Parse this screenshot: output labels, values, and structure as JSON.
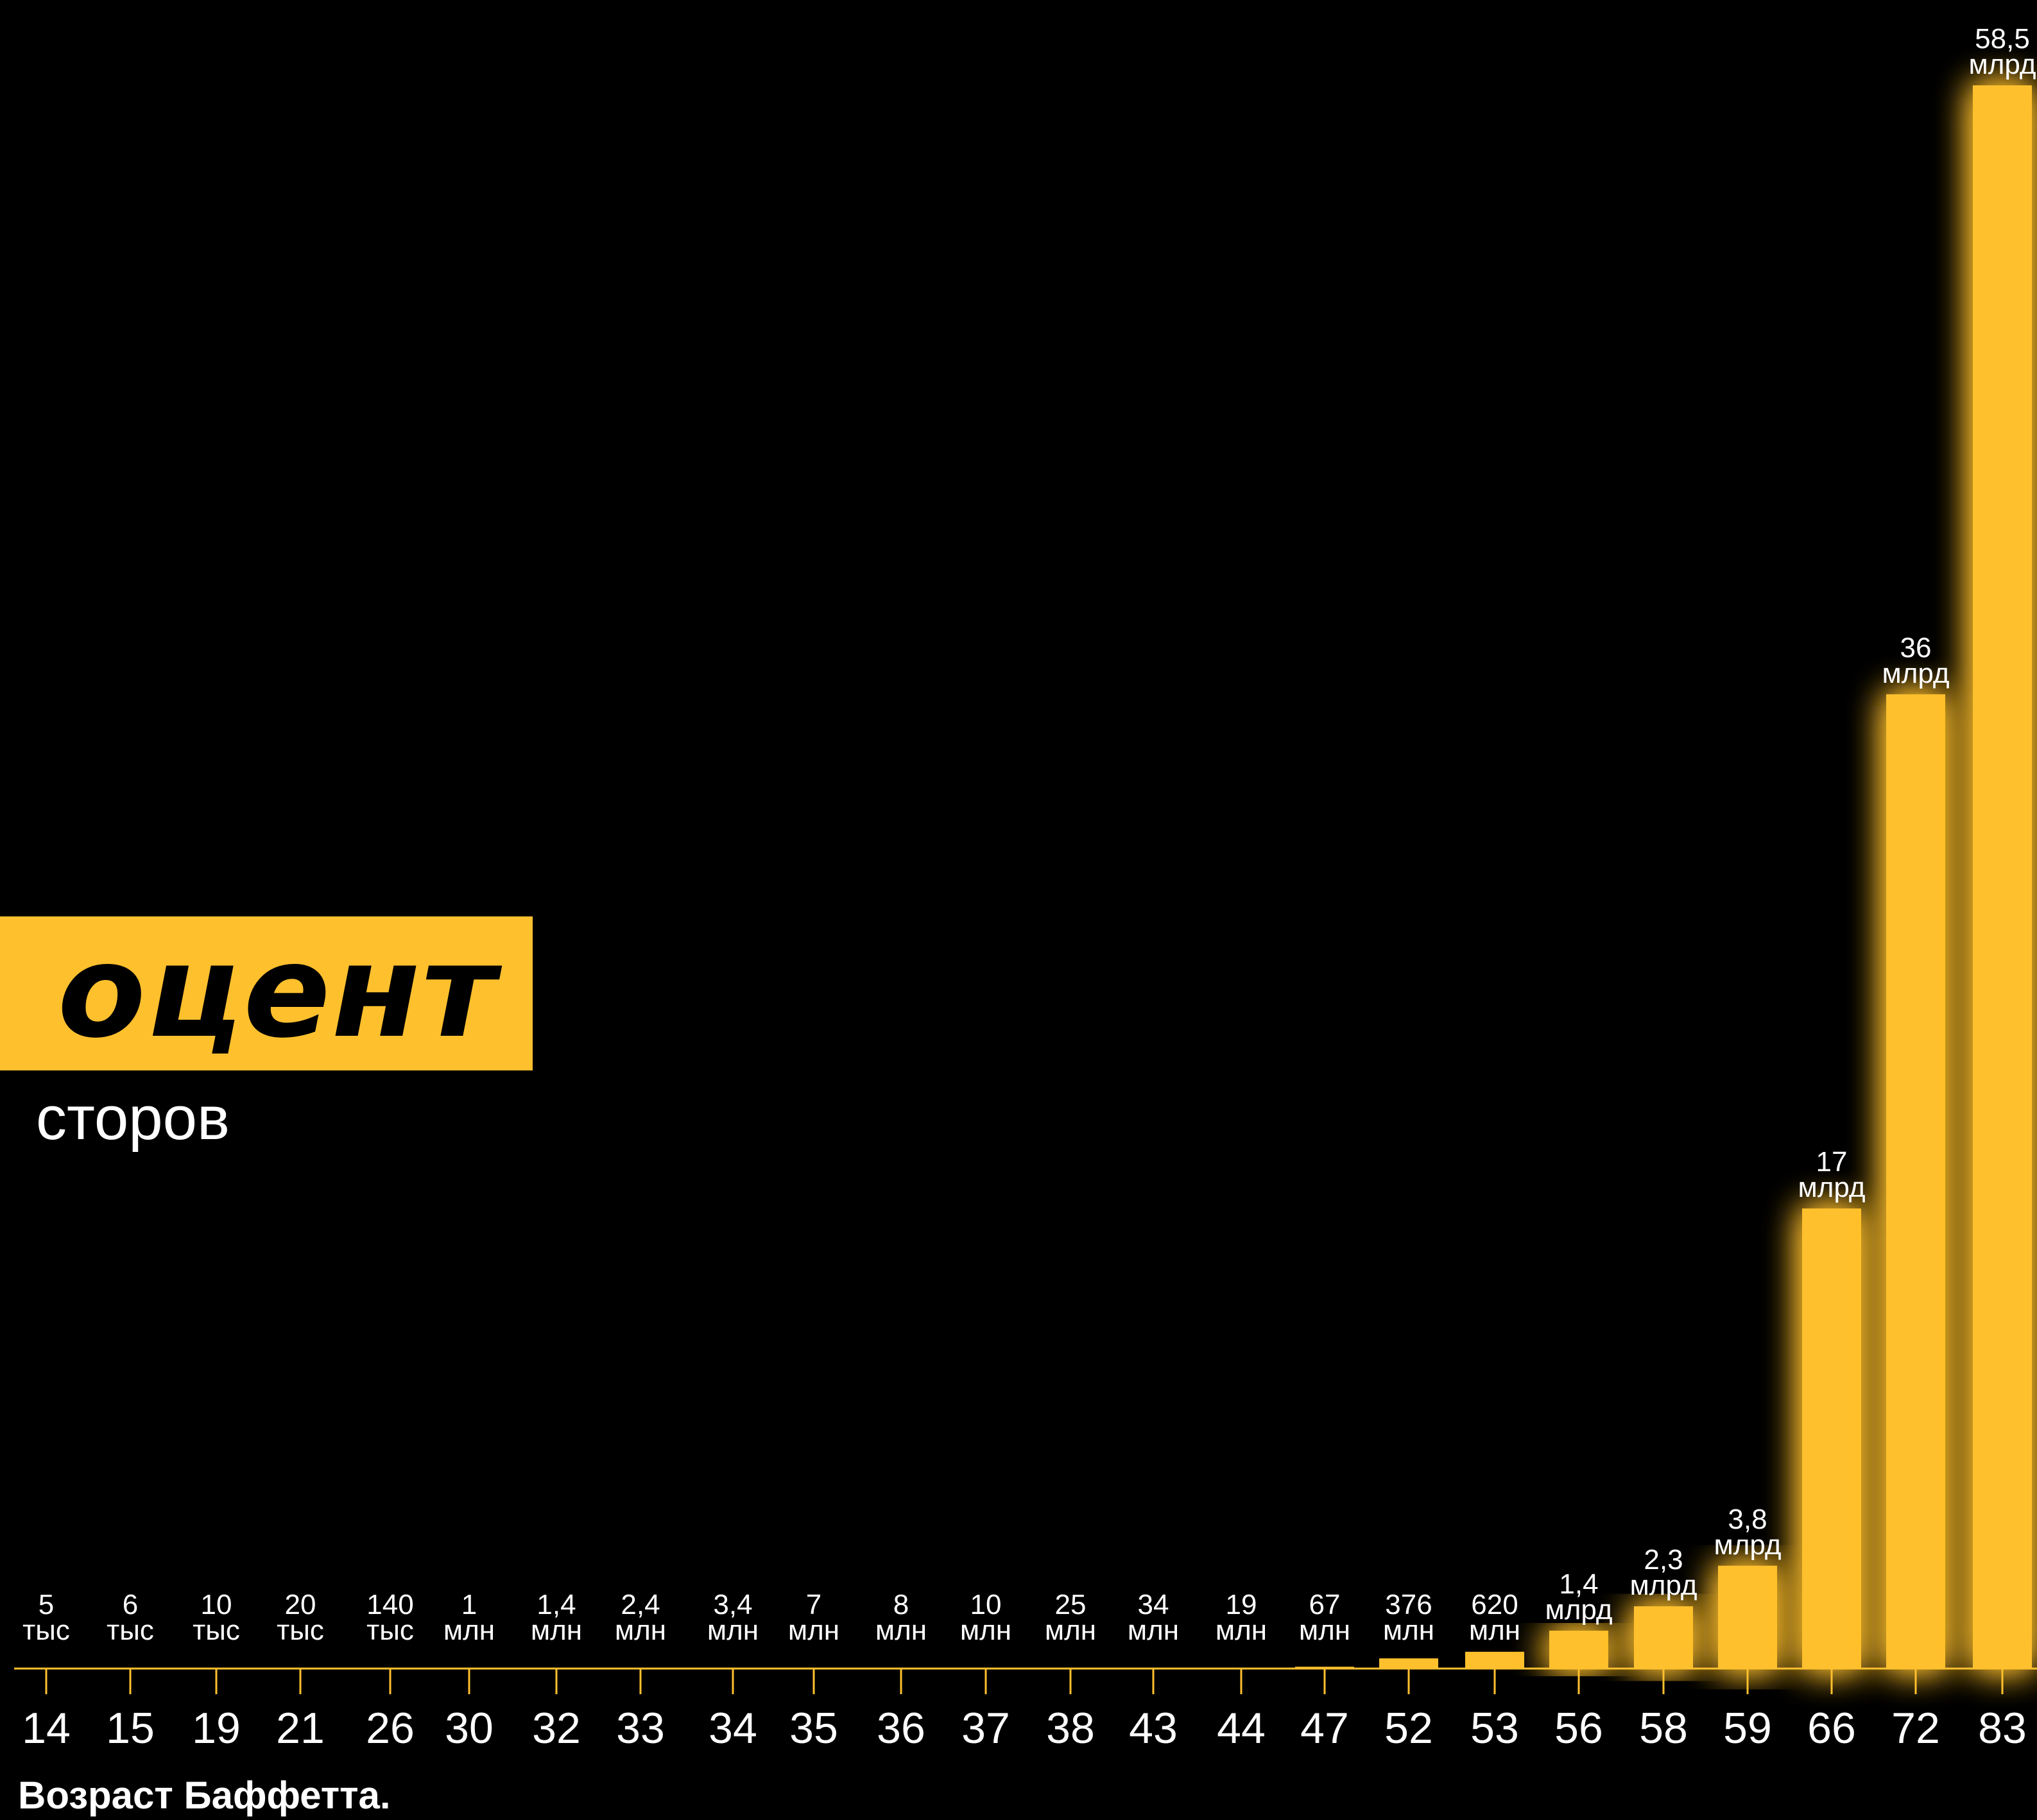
{
  "title": "оцент",
  "subtitle": "сторов",
  "x_caption": "Возраст Баффетта.",
  "colors": {
    "bar": "#FFC02E",
    "text": "#FFFFFF",
    "background": "#000000"
  },
  "chart_data": {
    "type": "bar",
    "categories": [
      "14",
      "15",
      "19",
      "21",
      "26",
      "30",
      "32",
      "33",
      "34",
      "35",
      "36",
      "37",
      "38",
      "43",
      "44",
      "47",
      "52",
      "53",
      "56",
      "58",
      "59",
      "66",
      "72",
      "83"
    ],
    "values": [
      5e-06,
      6e-06,
      1e-05,
      2e-05,
      0.00014,
      0.001,
      0.0014,
      0.0024,
      0.0034,
      0.007,
      0.008,
      0.01,
      0.025,
      0.034,
      0.019,
      0.067,
      0.376,
      0.62,
      1.4,
      2.3,
      3.8,
      17,
      36,
      58.5
    ],
    "data_labels": [
      [
        "5",
        "тыс"
      ],
      [
        "6",
        "тыс"
      ],
      [
        "10",
        "тыс"
      ],
      [
        "20",
        "тыс"
      ],
      [
        "140",
        "тыс"
      ],
      [
        "1",
        "млн"
      ],
      [
        "1,4",
        "млн"
      ],
      [
        "2,4",
        "млн"
      ],
      [
        "3,4",
        "млн"
      ],
      [
        "7",
        "млн"
      ],
      [
        "8",
        "млн"
      ],
      [
        "10",
        "млн"
      ],
      [
        "25",
        "млн"
      ],
      [
        "34",
        "млн"
      ],
      [
        "19",
        "млн"
      ],
      [
        "67",
        "млн"
      ],
      [
        "376",
        "млн"
      ],
      [
        "620",
        "млн"
      ],
      [
        "1,4",
        "млрд"
      ],
      [
        "2,3",
        "млрд"
      ],
      [
        "3,8",
        "млрд"
      ],
      [
        "17",
        "млрд"
      ],
      [
        "36",
        "млрд"
      ],
      [
        "58,5",
        "млрд"
      ]
    ],
    "ylim": [
      0,
      58.5
    ],
    "xlabel": "Возраст Баффетта.",
    "ylabel": "",
    "grid": false
  }
}
